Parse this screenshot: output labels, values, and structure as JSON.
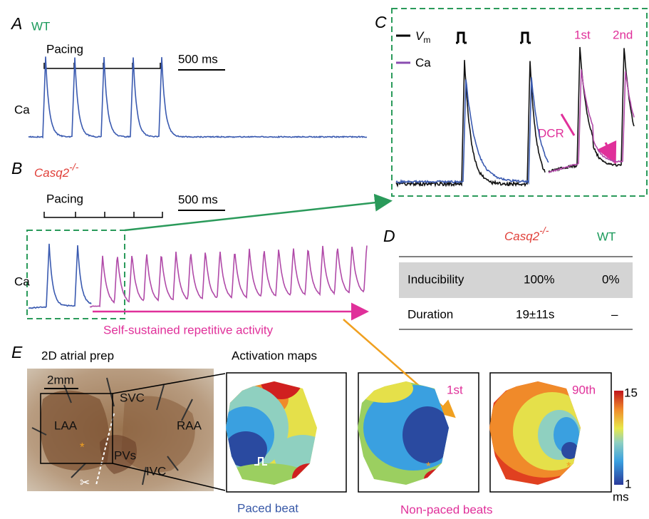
{
  "panel_a": {
    "label": "A",
    "genotype": "WT",
    "pacing": "Pacing",
    "scale": "500 ms",
    "trace": "Ca"
  },
  "panel_b": {
    "label": "B",
    "genotype": "Casq2",
    "genotype_sup": "-/-",
    "pacing": "Pacing",
    "scale": "500 ms",
    "trace": "Ca",
    "annotation": "Self-sustained repetitive activity"
  },
  "panel_c": {
    "label": "C",
    "legend": [
      {
        "name": "V",
        "sub": "m"
      },
      {
        "name": "Ca"
      }
    ],
    "beats": [
      "1st",
      "2nd"
    ],
    "annotation": "DCR"
  },
  "panel_d": {
    "label": "D",
    "columns": [
      {
        "text": "Casq2",
        "sup": "-/-"
      },
      {
        "text": "WT"
      }
    ],
    "rows": [
      [
        "Inducibility",
        "100%",
        "0%"
      ],
      [
        "Duration",
        "19±11s",
        "–"
      ]
    ]
  },
  "panel_e": {
    "label": "E",
    "prep_title": "2D atrial prep",
    "scale": "2mm",
    "regions": [
      "SVC",
      "LAA",
      "RAA",
      "PVs",
      "IVC"
    ],
    "maps_title": "Activation maps",
    "map_labels": [
      "1st",
      "90th"
    ],
    "captions": [
      "Paced beat",
      "Non-paced beats"
    ],
    "colorbar": {
      "max": 15,
      "min": 1,
      "unit": "ms"
    }
  }
}
